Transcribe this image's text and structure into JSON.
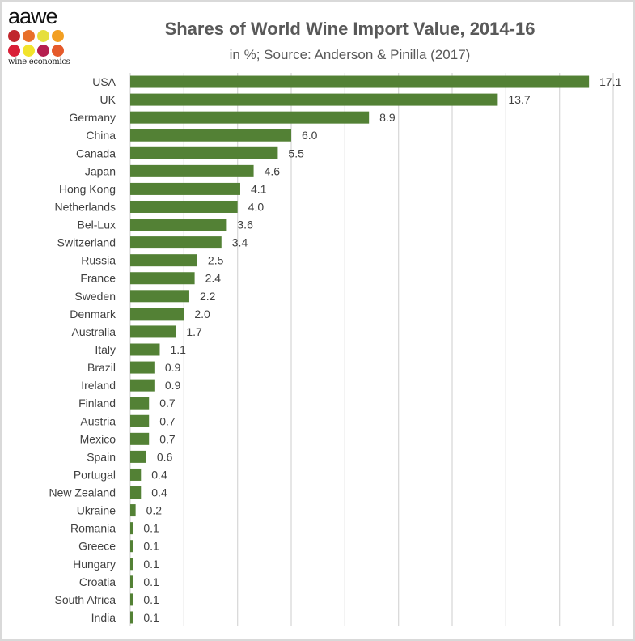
{
  "logo": {
    "word": "aawe",
    "sub": "wine economics",
    "dot_colors": [
      "#c0272d",
      "#e8702a",
      "#e6df3c",
      "#f29f22",
      "#d91e36",
      "#f2e32c",
      "#b51e4f",
      "#e55a2b"
    ]
  },
  "colors": {
    "bar": "#538135",
    "grid": "#d9d9d9",
    "text": "#404040",
    "title": "#595959"
  },
  "chart_data": {
    "type": "bar",
    "orientation": "horizontal",
    "title": "Shares of World Wine Import Value,  2014-16",
    "subtitle": "in %; Source: Anderson & Pinilla (2017)",
    "xlabel": "",
    "ylabel": "",
    "xlim": [
      0,
      18
    ],
    "grid_step": 2,
    "grid": true,
    "categories": [
      "USA",
      "UK",
      "Germany",
      "China",
      "Canada",
      "Japan",
      "Hong Kong",
      "Netherlands",
      "Bel-Lux",
      "Switzerland",
      "Russia",
      "France",
      "Sweden",
      "Denmark",
      "Australia",
      "Italy",
      "Brazil",
      "Ireland",
      "Finland",
      "Austria",
      "Mexico",
      "Spain",
      "Portugal",
      "New Zealand",
      "Ukraine",
      "Romania",
      "Greece",
      "Hungary",
      "Croatia",
      "South Africa",
      "India"
    ],
    "values": [
      17.1,
      13.7,
      8.9,
      6.0,
      5.5,
      4.6,
      4.1,
      4.0,
      3.6,
      3.4,
      2.5,
      2.4,
      2.2,
      2.0,
      1.7,
      1.1,
      0.9,
      0.9,
      0.7,
      0.7,
      0.7,
      0.6,
      0.4,
      0.4,
      0.2,
      0.1,
      0.1,
      0.1,
      0.1,
      0.1,
      0.1
    ],
    "data_labels": [
      "17.1",
      "13.7",
      "8.9",
      "6.0",
      "5.5",
      "4.6",
      "4.1",
      "4.0",
      "3.6",
      "3.4",
      "2.5",
      "2.4",
      "2.2",
      "2.0",
      "1.7",
      "1.1",
      "0.9",
      "0.9",
      "0.7",
      "0.7",
      "0.7",
      "0.6",
      "0.4",
      "0.4",
      "0.2",
      "0.1",
      "0.1",
      "0.1",
      "0.1",
      "0.1",
      "0.1"
    ]
  }
}
